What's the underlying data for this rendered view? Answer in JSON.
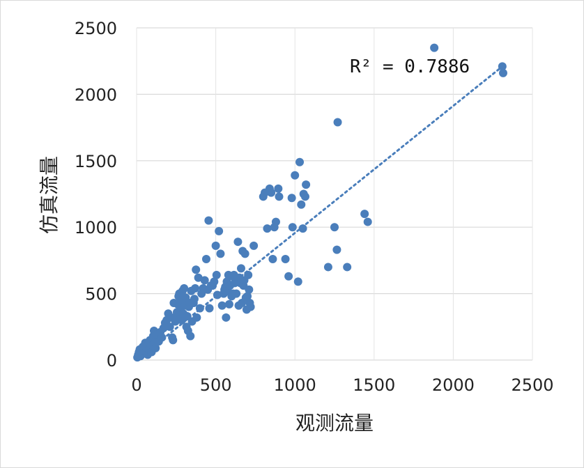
{
  "chart_data": {
    "type": "scatter",
    "xlabel": "观测流量",
    "ylabel": "仿真流量",
    "xlim": [
      0,
      2500
    ],
    "ylim": [
      0,
      2500
    ],
    "xticks": [
      "0",
      "500",
      "1000",
      "1500",
      "2000",
      "2500"
    ],
    "yticks": [
      "0",
      "500",
      "1000",
      "1500",
      "2000",
      "2500"
    ],
    "grid": "horizontal",
    "point_color": "#4a7ebb",
    "trendline": {
      "type": "linear",
      "style": "dotted",
      "color": "#4a7ebb",
      "r2_label": "R² = 0.7886",
      "from": [
        0,
        0
      ],
      "to": [
        2300,
        2200
      ]
    },
    "points": [
      [
        5,
        20
      ],
      [
        10,
        40
      ],
      [
        15,
        60
      ],
      [
        20,
        80
      ],
      [
        25,
        30
      ],
      [
        30,
        50
      ],
      [
        35,
        90
      ],
      [
        40,
        100
      ],
      [
        45,
        70
      ],
      [
        50,
        110
      ],
      [
        55,
        130
      ],
      [
        60,
        60
      ],
      [
        65,
        90
      ],
      [
        70,
        40
      ],
      [
        75,
        120
      ],
      [
        80,
        80
      ],
      [
        85,
        150
      ],
      [
        90,
        100
      ],
      [
        95,
        60
      ],
      [
        100,
        110
      ],
      [
        105,
        180
      ],
      [
        110,
        220
      ],
      [
        115,
        130
      ],
      [
        120,
        90
      ],
      [
        125,
        160
      ],
      [
        130,
        190
      ],
      [
        140,
        140
      ],
      [
        150,
        210
      ],
      [
        160,
        170
      ],
      [
        170,
        240
      ],
      [
        180,
        280
      ],
      [
        190,
        300
      ],
      [
        200,
        350
      ],
      [
        210,
        250
      ],
      [
        220,
        320
      ],
      [
        225,
        170
      ],
      [
        230,
        150
      ],
      [
        235,
        430
      ],
      [
        240,
        310
      ],
      [
        245,
        290
      ],
      [
        250,
        330
      ],
      [
        255,
        360
      ],
      [
        260,
        420
      ],
      [
        265,
        480
      ],
      [
        270,
        500
      ],
      [
        275,
        380
      ],
      [
        280,
        450
      ],
      [
        285,
        300
      ],
      [
        290,
        520
      ],
      [
        295,
        350
      ],
      [
        300,
        540
      ],
      [
        305,
        410
      ],
      [
        310,
        470
      ],
      [
        315,
        250
      ],
      [
        320,
        330
      ],
      [
        325,
        220
      ],
      [
        330,
        400
      ],
      [
        335,
        430
      ],
      [
        340,
        180
      ],
      [
        345,
        520
      ],
      [
        350,
        290
      ],
      [
        360,
        430
      ],
      [
        365,
        460
      ],
      [
        370,
        540
      ],
      [
        375,
        680
      ],
      [
        380,
        320
      ],
      [
        390,
        620
      ],
      [
        400,
        390
      ],
      [
        410,
        500
      ],
      [
        420,
        540
      ],
      [
        430,
        600
      ],
      [
        440,
        760
      ],
      [
        450,
        530
      ],
      [
        455,
        1050
      ],
      [
        460,
        390
      ],
      [
        470,
        560
      ],
      [
        480,
        560
      ],
      [
        490,
        590
      ],
      [
        500,
        860
      ],
      [
        505,
        640
      ],
      [
        510,
        490
      ],
      [
        520,
        970
      ],
      [
        530,
        800
      ],
      [
        540,
        410
      ],
      [
        550,
        500
      ],
      [
        555,
        530
      ],
      [
        560,
        550
      ],
      [
        565,
        320
      ],
      [
        570,
        590
      ],
      [
        575,
        520
      ],
      [
        580,
        640
      ],
      [
        585,
        420
      ],
      [
        590,
        560
      ],
      [
        600,
        480
      ],
      [
        605,
        630
      ],
      [
        610,
        500
      ],
      [
        615,
        640
      ],
      [
        620,
        580
      ],
      [
        625,
        610
      ],
      [
        630,
        500
      ],
      [
        640,
        890
      ],
      [
        645,
        410
      ],
      [
        650,
        620
      ],
      [
        655,
        580
      ],
      [
        660,
        690
      ],
      [
        665,
        430
      ],
      [
        670,
        820
      ],
      [
        675,
        560
      ],
      [
        680,
        600
      ],
      [
        685,
        800
      ],
      [
        690,
        470
      ],
      [
        695,
        380
      ],
      [
        700,
        480
      ],
      [
        705,
        640
      ],
      [
        710,
        530
      ],
      [
        715,
        430
      ],
      [
        720,
        400
      ],
      [
        740,
        860
      ],
      [
        800,
        1230
      ],
      [
        810,
        1260
      ],
      [
        825,
        990
      ],
      [
        840,
        1290
      ],
      [
        850,
        1260
      ],
      [
        860,
        760
      ],
      [
        870,
        1000
      ],
      [
        880,
        1040
      ],
      [
        895,
        1290
      ],
      [
        900,
        1230
      ],
      [
        940,
        760
      ],
      [
        960,
        630
      ],
      [
        980,
        1220
      ],
      [
        985,
        1000
      ],
      [
        1000,
        1390
      ],
      [
        1020,
        590
      ],
      [
        1030,
        1490
      ],
      [
        1040,
        1170
      ],
      [
        1050,
        990
      ],
      [
        1055,
        1250
      ],
      [
        1065,
        1230
      ],
      [
        1070,
        1320
      ],
      [
        1210,
        700
      ],
      [
        1250,
        1000
      ],
      [
        1265,
        830
      ],
      [
        1270,
        1790
      ],
      [
        1330,
        700
      ],
      [
        1440,
        1100
      ],
      [
        1460,
        1040
      ],
      [
        1880,
        2350
      ],
      [
        2310,
        2210
      ],
      [
        2315,
        2160
      ]
    ]
  }
}
